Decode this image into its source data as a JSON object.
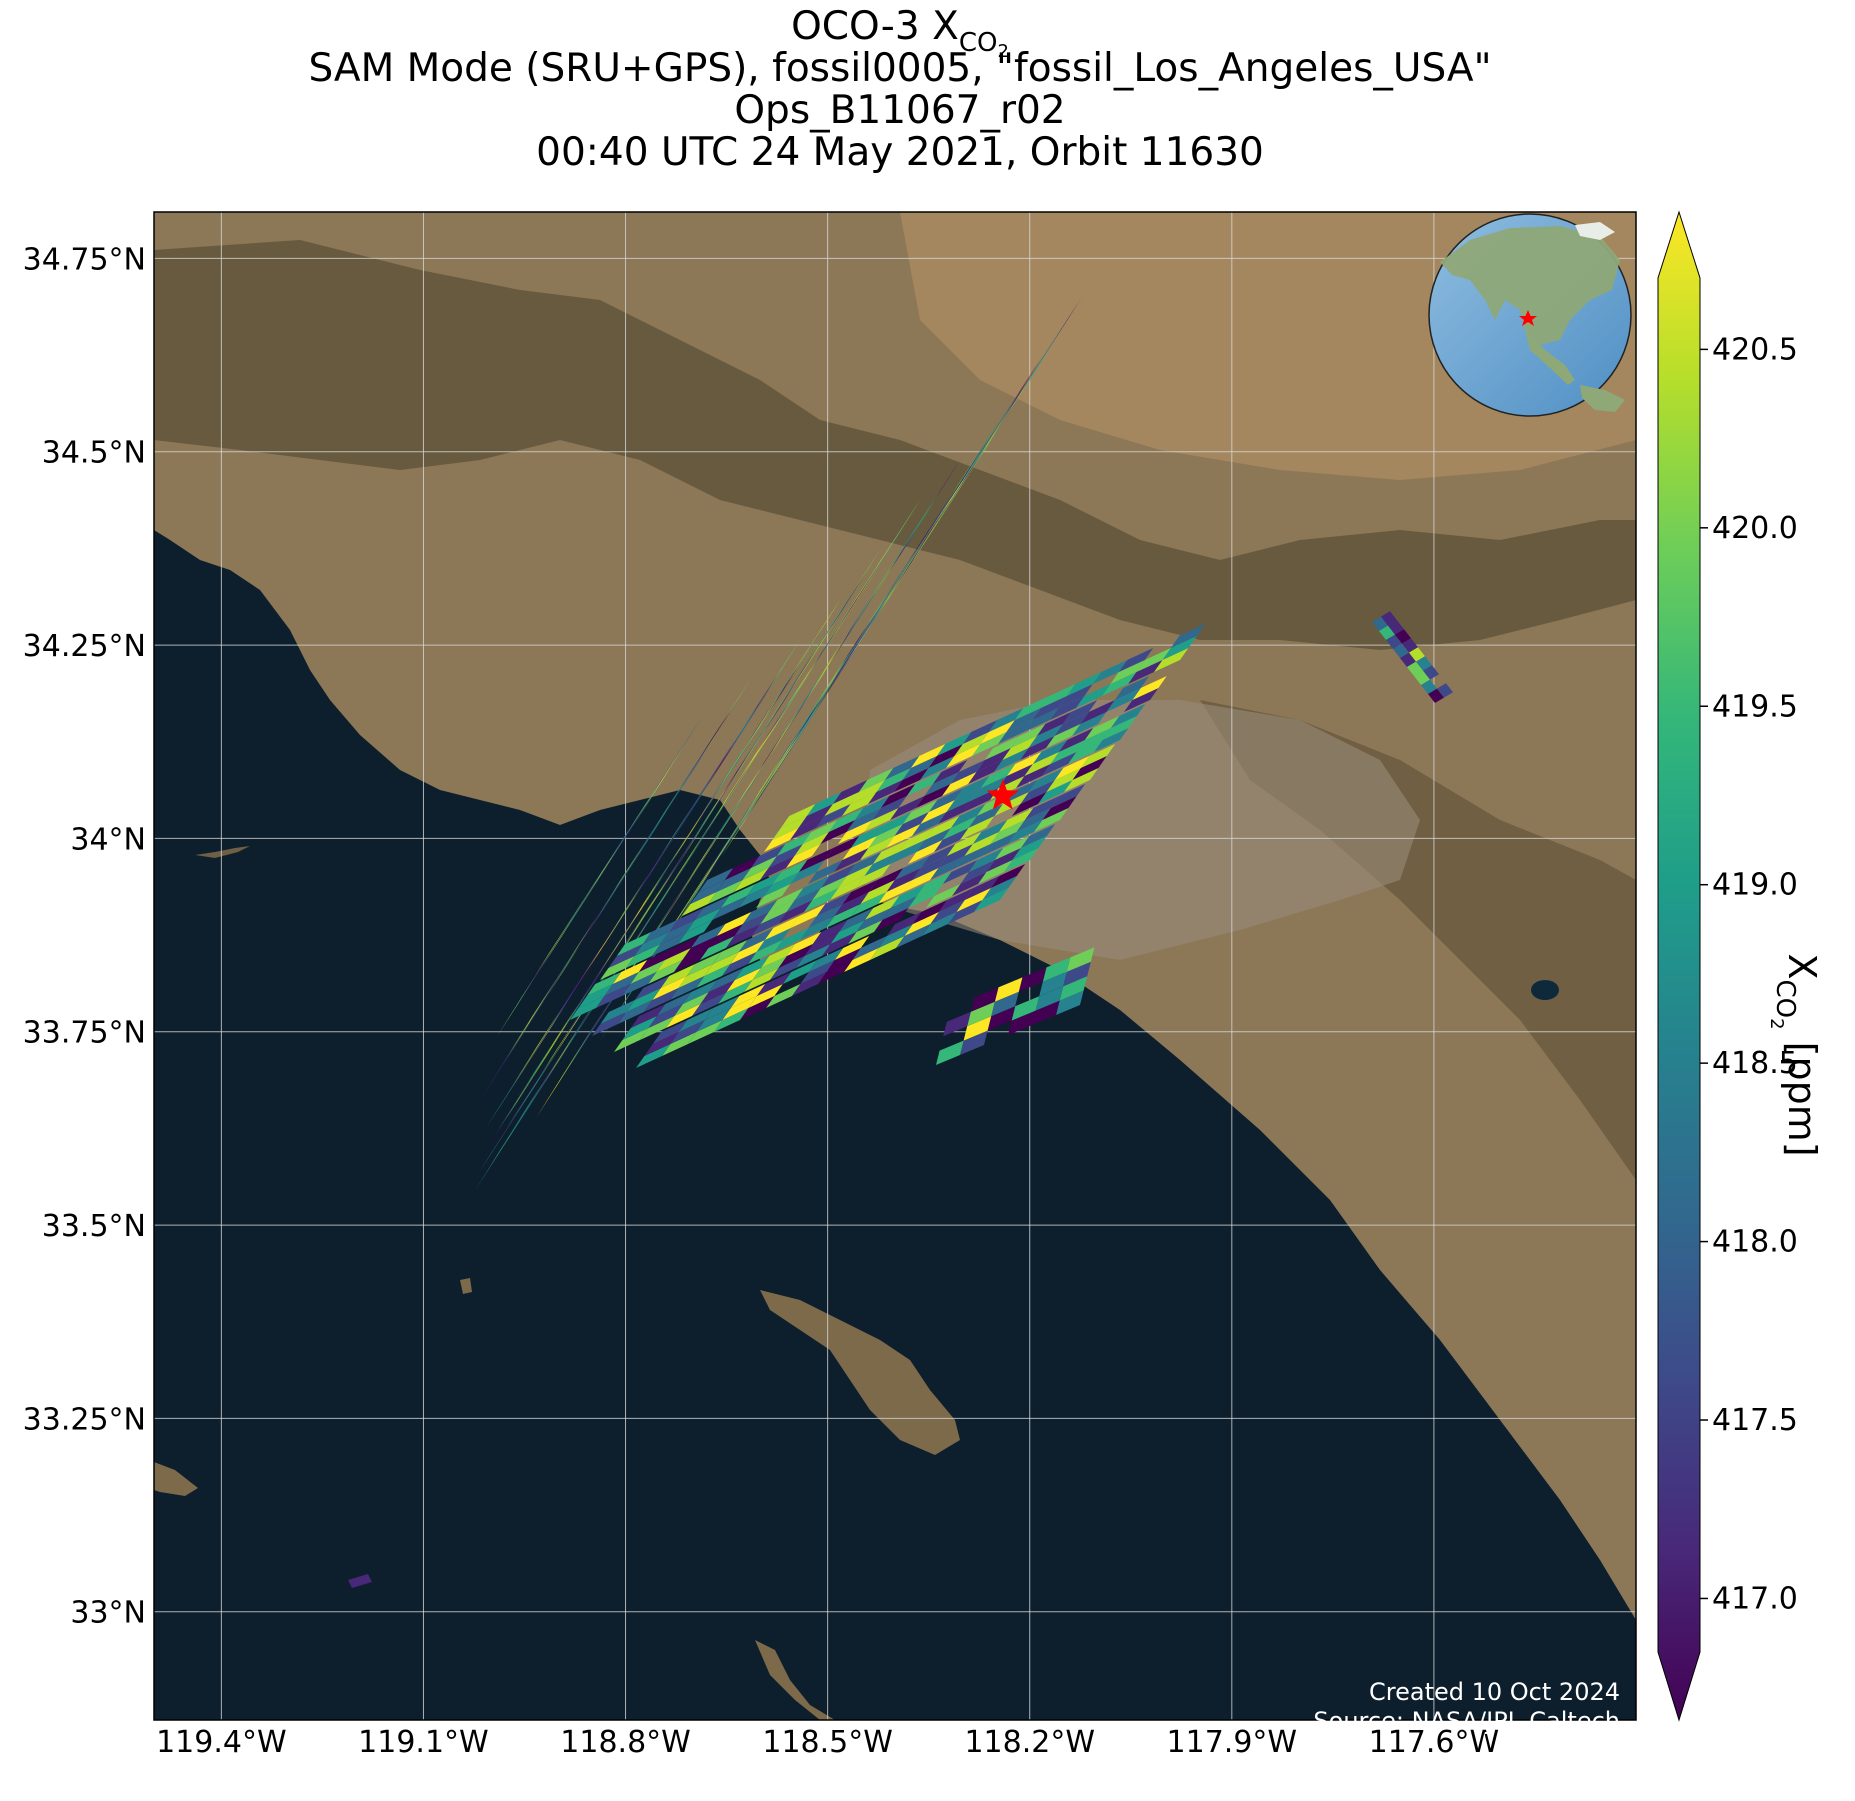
{
  "title": {
    "line1_prefix": "OCO-3 X",
    "line1_sub": "CO",
    "line1_subsub": "2",
    "line2": "SAM Mode (SRU+GPS), fossil0005, \"fossil_Los_Angeles_USA\"",
    "line3": "Ops_B11067_r02",
    "line4": "00:40 UTC 24 May 2021, Orbit 11630"
  },
  "credits": {
    "created": "Created 10 Oct 2024",
    "source": "Source: NASA/JPL-Caltech"
  },
  "colorbar": {
    "label_prefix": "X",
    "label_sub": "CO",
    "label_subsub": "2",
    "label_suffix": " [ppm]",
    "ticks": [
      "417.0",
      "417.5",
      "418.0",
      "418.5",
      "419.0",
      "419.5",
      "420.0",
      "420.5"
    ],
    "tick_values": [
      417.0,
      417.5,
      418.0,
      418.5,
      419.0,
      419.5,
      420.0,
      420.5
    ],
    "vmin": 416.85,
    "vmax": 420.7,
    "colormap": "viridis",
    "colors": [
      "#440154",
      "#482878",
      "#3e4989",
      "#31688e",
      "#26828e",
      "#1f9e89",
      "#35b779",
      "#6ece58",
      "#b5de2b",
      "#fde725"
    ]
  },
  "map": {
    "lat_labels": [
      "34.75°N",
      "34.5°N",
      "34.25°N",
      "34°N",
      "33.75°N",
      "33.5°N",
      "33.25°N",
      "33°N"
    ],
    "lat_values": [
      34.75,
      34.5,
      34.25,
      34.0,
      33.75,
      33.5,
      33.25,
      33.0
    ],
    "lon_labels": [
      "119.4°W",
      "119.1°W",
      "118.8°W",
      "118.5°W",
      "118.2°W",
      "117.9°W",
      "117.6°W"
    ],
    "lon_values": [
      -119.4,
      -119.1,
      -118.8,
      -118.5,
      -118.2,
      -117.9,
      -117.6
    ],
    "lon_range": [
      -119.5,
      -117.3
    ],
    "lat_range": [
      32.86,
      34.81
    ],
    "target_marker": {
      "lon": -118.24,
      "lat": 34.055,
      "color": "#ff0000"
    },
    "colors": {
      "ocean": "#0d1e2c",
      "land": "#8e7a5a",
      "mountain": "#5a4f36",
      "grid": "#d8d8d8"
    }
  }
}
